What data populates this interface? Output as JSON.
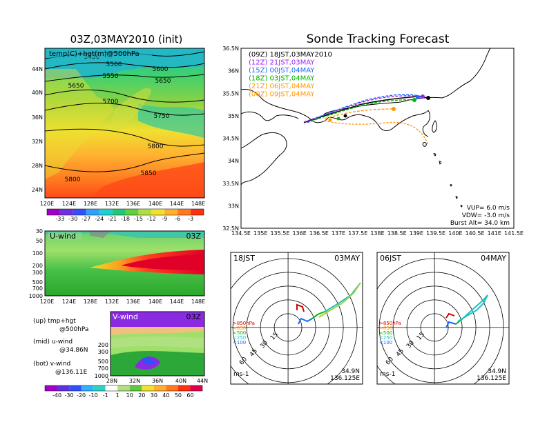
{
  "left_panel": {
    "title": "03Z,03MAY2010 (init)",
    "map_label": "temp(C)+hgt(m)@500hPa",
    "lat_ticks": [
      "44N",
      "40N",
      "36N",
      "32N",
      "28N",
      "24N"
    ],
    "lon_ticks": [
      "120E",
      "124E",
      "128E",
      "132E",
      "136E",
      "140E",
      "144E",
      "148E"
    ],
    "contours": [
      "5450",
      "5500",
      "5550",
      "5600",
      "5650",
      "5650",
      "5700",
      "5750",
      "5800",
      "5800",
      "5850"
    ],
    "temp_colorbar": [
      "-33",
      "-30",
      "-27",
      "-24",
      "-21",
      "-18",
      "-15",
      "-12",
      "-9",
      "-6",
      "-3"
    ],
    "colors": {
      "cold": "#8a2be2",
      "mid": "#55cc55",
      "warm": "#ff3300"
    }
  },
  "uwind": {
    "label": "U-wind",
    "time": "03Z",
    "y_ticks": [
      "30",
      "50",
      "100",
      "200",
      "300",
      "500",
      "700",
      "1000"
    ],
    "x_ticks": [
      "120E",
      "124E",
      "128E",
      "132E",
      "136E",
      "140E",
      "144E",
      "148E"
    ]
  },
  "vwind": {
    "label": "V-wind",
    "time": "03Z",
    "y_ticks": [
      "200",
      "300",
      "500",
      "700",
      "1000"
    ],
    "x_ticks": [
      "28N",
      "32N",
      "36N",
      "40N",
      "44N"
    ]
  },
  "notes": {
    "up": "(up) tmp+hgt",
    "up2": "@500hPa",
    "mid": "(mid) u-wind",
    "mid2": "@34.86N",
    "bot": "(bot) v-wind",
    "bot2": "@136.11E"
  },
  "wind_colorbar": [
    "-40",
    "-30",
    "-20",
    "-10",
    "-1",
    "1",
    "10",
    "20",
    "30",
    "40",
    "50",
    "60"
  ],
  "main": {
    "title": "Sonde Tracking Forecast",
    "legend": [
      {
        "text": "(09Z) 18JST,03MAY2010",
        "color": "#000000"
      },
      {
        "text": "(12Z) 21JST,03MAY",
        "color": "#a020f0"
      },
      {
        "text": "(15Z) 00JST,04MAY",
        "color": "#1e64ff"
      },
      {
        "text": "(18Z) 03JST,04MAY",
        "color": "#00b400"
      },
      {
        "text": "(21Z) 06JST,04MAY",
        "color": "#ff9900"
      },
      {
        "text": "(00Z) 09JST,04MAY",
        "color": "#ff9900"
      }
    ],
    "lat_ticks": [
      "36.5N",
      "36N",
      "35.5N",
      "35N",
      "34.5N",
      "34N",
      "33.5N",
      "33N",
      "32.5N"
    ],
    "lon_ticks": [
      "134.5E",
      "135E",
      "135.5E",
      "136E",
      "136.5E",
      "137E",
      "137.5E",
      "138E",
      "138.5E",
      "139E",
      "139.5E",
      "140E",
      "140.5E",
      "141E",
      "141.5E"
    ],
    "vup": "VUP=  6.0  m/s",
    "vdw": "VDW= -3.0  m/s",
    "burst": "Burst Alt= 34.0  km"
  },
  "hodo1": {
    "time": "18JST",
    "date": "03MAY",
    "lat": "34.9N",
    "lon": "136.125E",
    "unit": "ms-1",
    "ring_labels": [
      "15",
      "30",
      "45",
      "60"
    ],
    "levels": [
      ">850hPa",
      "<850",
      "<500",
      "<250",
      "<100"
    ]
  },
  "hodo2": {
    "time": "06JST",
    "date": "04MAY",
    "lat": "34.9N",
    "lon": "136.125E",
    "unit": "ms-1",
    "ring_labels": [
      "15",
      "30",
      "45",
      "60"
    ],
    "levels": [
      ">850hPa",
      "<850",
      "<500",
      "<250",
      "<100"
    ]
  }
}
